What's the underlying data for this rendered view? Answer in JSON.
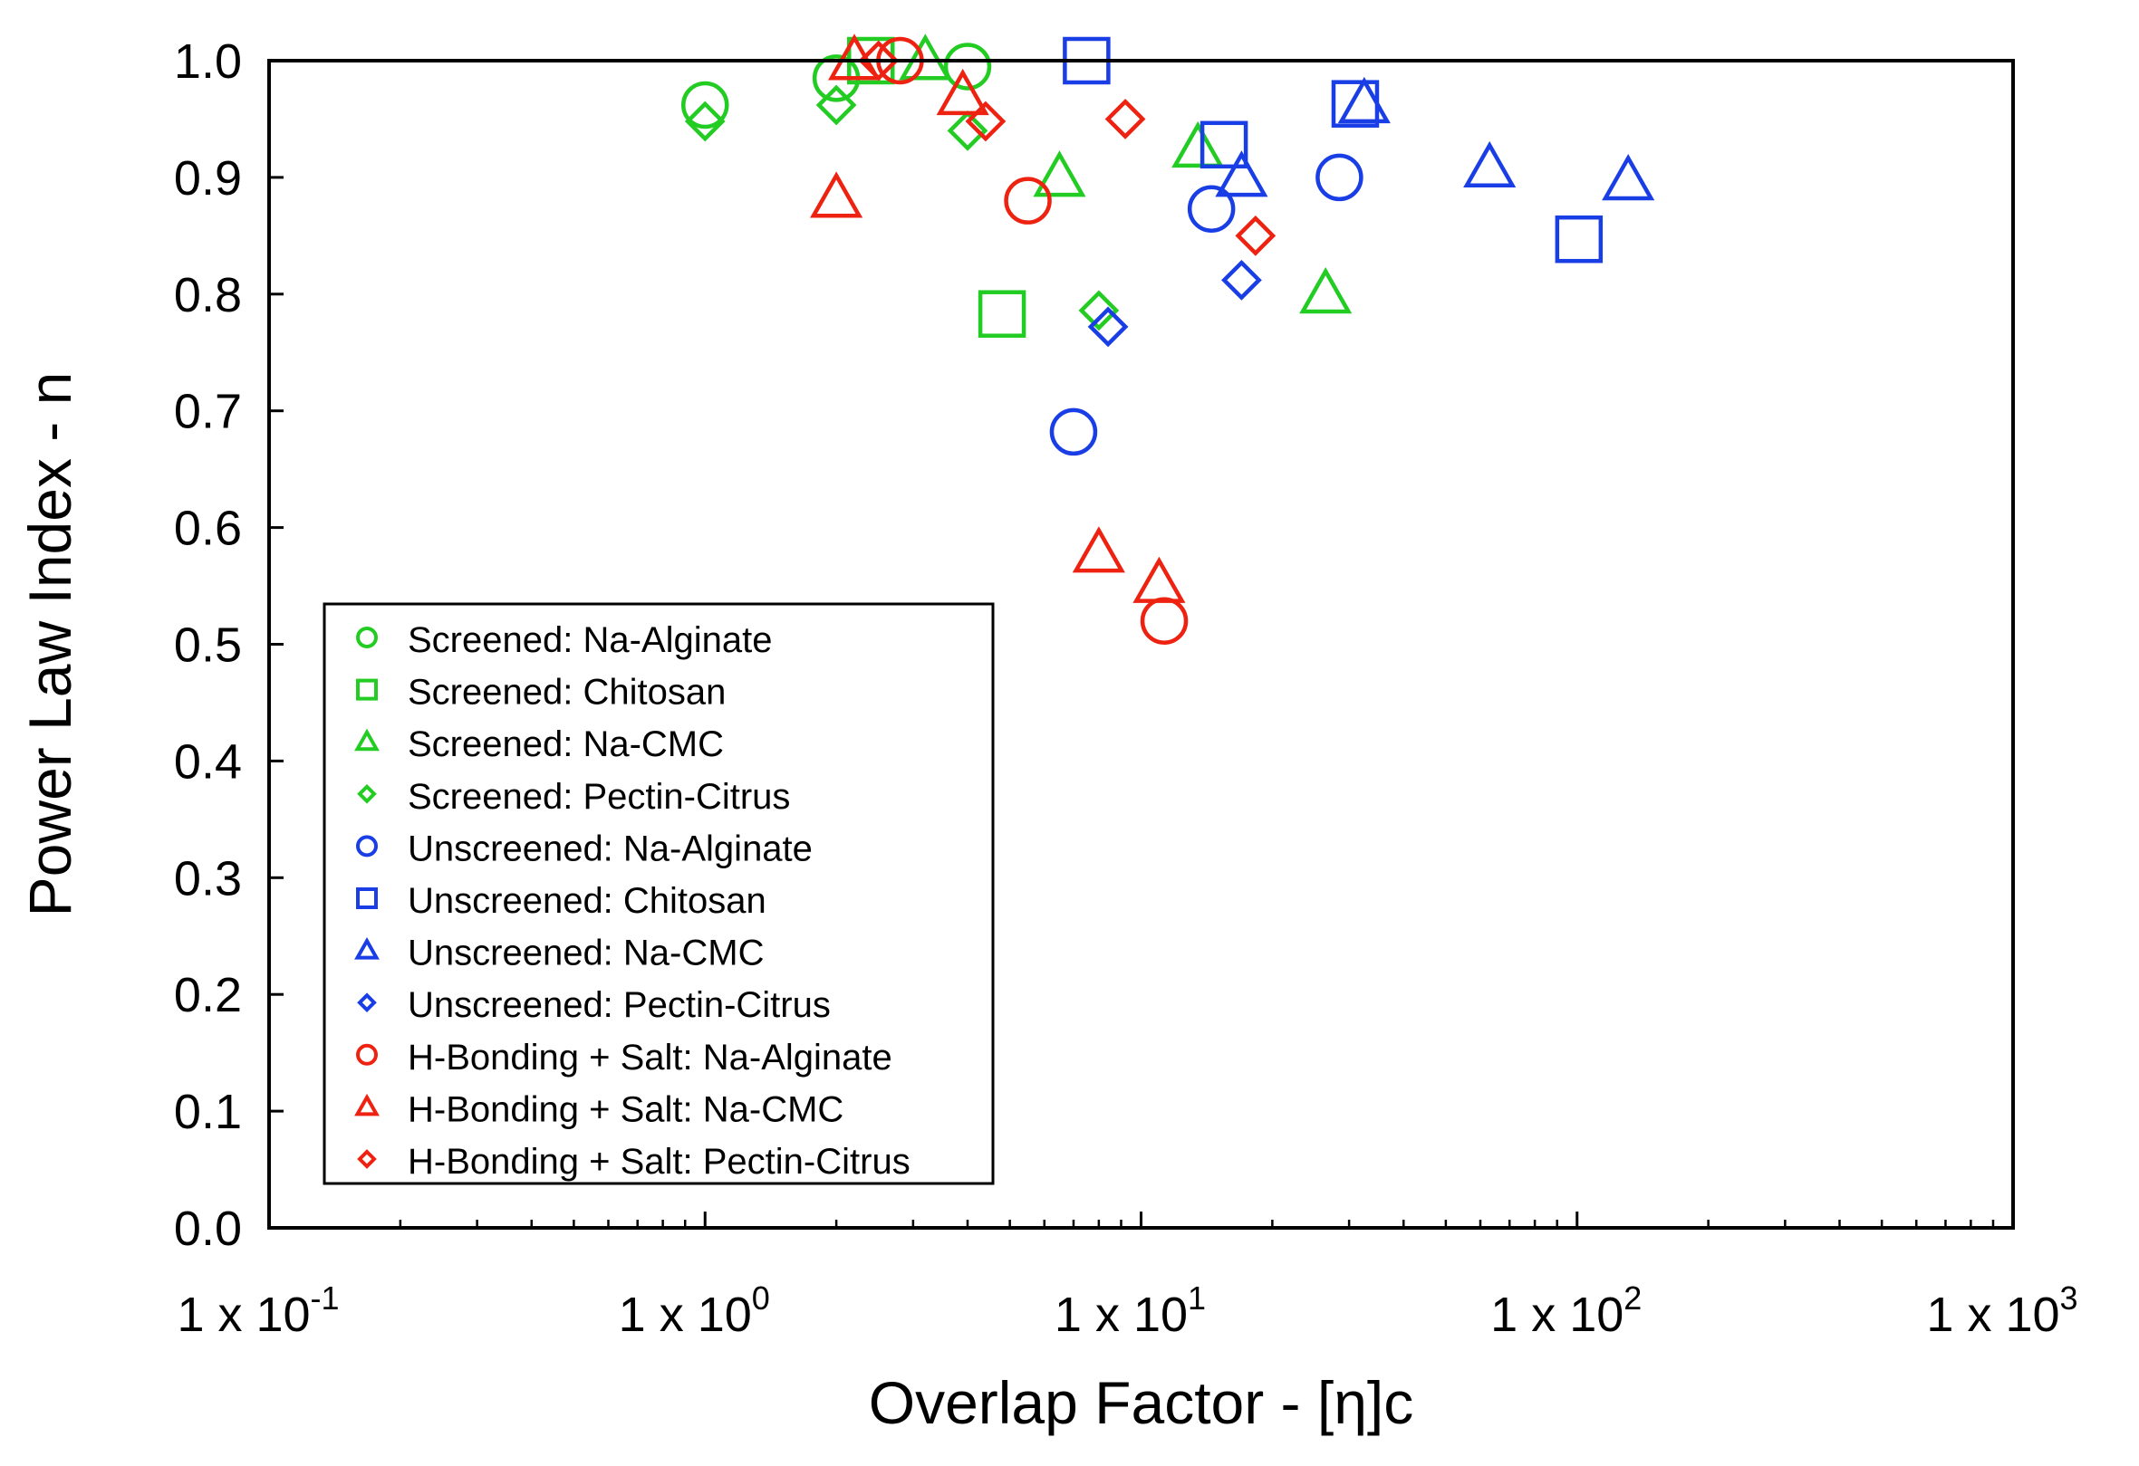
{
  "chart_data": {
    "type": "scatter",
    "xscale": "log",
    "xlim": [
      0.1,
      1000
    ],
    "ylim": [
      0.0,
      1.0
    ],
    "xlabel": "Overlap Factor - [η]c",
    "ylabel": "Power Law Index - n",
    "xticks": [
      {
        "value": 0.1,
        "base": "1 x 10",
        "exp": "-1"
      },
      {
        "value": 1,
        "base": "1 x 10",
        "exp": "0"
      },
      {
        "value": 10,
        "base": "1 x 10",
        "exp": "1"
      },
      {
        "value": 100,
        "base": "1 x 10",
        "exp": "2"
      },
      {
        "value": 1000,
        "base": "1 x 10",
        "exp": "3"
      }
    ],
    "yticks": [
      "0.0",
      "0.1",
      "0.2",
      "0.3",
      "0.4",
      "0.5",
      "0.6",
      "0.7",
      "0.8",
      "0.9",
      "1.0"
    ],
    "legend_position": "lower-left",
    "series": [
      {
        "name": "Screened: Na-Alginate",
        "color": "#22cc22",
        "marker": "circle",
        "points": [
          [
            1.0,
            0.962
          ],
          [
            2.0,
            0.985
          ],
          [
            4.0,
            0.995
          ]
        ]
      },
      {
        "name": "Screened: Chitosan",
        "color": "#22cc22",
        "marker": "square",
        "points": [
          [
            2.4,
            1.0
          ],
          [
            4.8,
            0.783
          ]
        ]
      },
      {
        "name": "Screened: Na-CMC",
        "color": "#22cc22",
        "marker": "triangle",
        "points": [
          [
            3.2,
            1.0
          ],
          [
            6.5,
            0.9
          ],
          [
            13.5,
            0.925
          ],
          [
            26.5,
            0.8
          ]
        ]
      },
      {
        "name": "Screened: Pectin-Citrus",
        "color": "#22cc22",
        "marker": "diamond",
        "points": [
          [
            1.0,
            0.948
          ],
          [
            2.0,
            0.962
          ],
          [
            4.0,
            0.94
          ],
          [
            8.0,
            0.786
          ]
        ]
      },
      {
        "name": "Unscreened: Na-Alginate",
        "color": "#1a3ee6",
        "marker": "circle",
        "points": [
          [
            7.0,
            0.682
          ],
          [
            14.5,
            0.873
          ],
          [
            28.5,
            0.9
          ]
        ]
      },
      {
        "name": "Unscreened: Chitosan",
        "color": "#1a3ee6",
        "marker": "square",
        "points": [
          [
            7.5,
            1.0
          ],
          [
            15.5,
            0.928
          ],
          [
            31.0,
            0.963
          ],
          [
            101.0,
            0.847
          ]
        ]
      },
      {
        "name": "Unscreened: Na-CMC",
        "color": "#1a3ee6",
        "marker": "triangle",
        "points": [
          [
            17.0,
            0.9
          ],
          [
            32.5,
            0.963
          ],
          [
            63.0,
            0.908
          ],
          [
            131.0,
            0.897
          ]
        ]
      },
      {
        "name": "Unscreened: Pectin-Citrus",
        "color": "#1a3ee6",
        "marker": "diamond",
        "points": [
          [
            8.4,
            0.772
          ],
          [
            17.0,
            0.812
          ]
        ]
      },
      {
        "name": "H-Bonding + Salt: Na-Alginate",
        "color": "#ee2211",
        "marker": "circle",
        "points": [
          [
            2.8,
            1.0
          ],
          [
            5.5,
            0.88
          ],
          [
            11.3,
            0.52
          ]
        ]
      },
      {
        "name": "H-Bonding + Salt: Na-CMC",
        "color": "#ee2211",
        "marker": "triangle",
        "points": [
          [
            2.0,
            0.882
          ],
          [
            2.2,
            1.0
          ],
          [
            3.9,
            0.97
          ],
          [
            8.0,
            0.578
          ],
          [
            11.0,
            0.552
          ]
        ]
      },
      {
        "name": "H-Bonding + Salt: Pectin-Citrus",
        "color": "#ee2211",
        "marker": "diamond",
        "points": [
          [
            2.5,
            1.0
          ],
          [
            4.4,
            0.948
          ],
          [
            9.2,
            0.95
          ],
          [
            18.3,
            0.85
          ]
        ]
      }
    ]
  }
}
